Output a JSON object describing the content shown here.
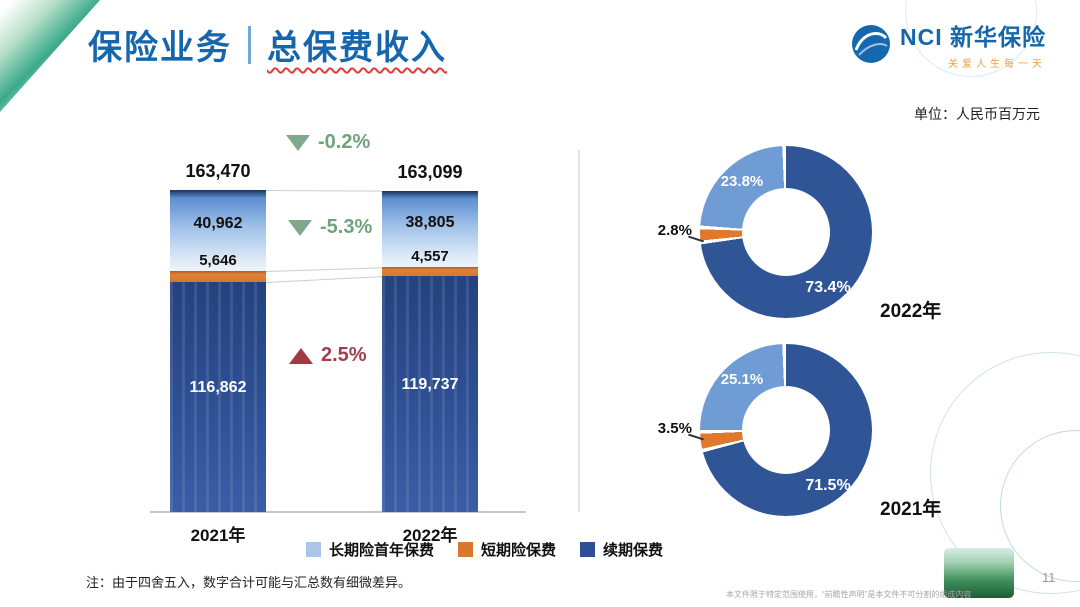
{
  "header": {
    "title_left": "保险业务",
    "title_right": "总保费收入"
  },
  "logo": {
    "abbr": "NCI",
    "company": "新华保险",
    "tagline": "关爱人生每一天",
    "brand_color": "#1467AC",
    "tagline_color": "#E8A23C"
  },
  "unit_label": "单位：人民币百万元",
  "chart_data": [
    {
      "type": "bar",
      "subtype": "stacked",
      "title": "总保费收入",
      "unit": "人民币百万元",
      "categories": [
        "2021年",
        "2022年"
      ],
      "totals": [
        163470,
        163099
      ],
      "totals_text": [
        "163,470",
        "163,099"
      ],
      "bars": [
        {
          "category": "2021年",
          "total": 163470,
          "total_text": "163,470",
          "segments": [
            {
              "name": "长期险首年保费",
              "value": 40962,
              "text": "40,962",
              "color": "#8FB0DE"
            },
            {
              "name": "短期险保费",
              "value": 5646,
              "text": "5,646",
              "color": "#D9782D"
            },
            {
              "name": "续期保费",
              "value": 116862,
              "text": "116,862",
              "color": "#2E4F96"
            }
          ]
        },
        {
          "category": "2022年",
          "total": 163099,
          "total_text": "163,099",
          "segments": [
            {
              "name": "长期险首年保费",
              "value": 38805,
              "text": "38,805",
              "color": "#8FB0DE"
            },
            {
              "name": "短期险保费",
              "value": 4557,
              "text": "4,557",
              "color": "#D9782D"
            },
            {
              "name": "续期保费",
              "value": 119737,
              "text": "119,737",
              "color": "#2E4F96"
            }
          ]
        }
      ],
      "change_indicators": [
        {
          "text": "-0.2%",
          "direction": "down",
          "color": "#6FA37B",
          "refers_to": "总保费"
        },
        {
          "text": "-5.3%",
          "direction": "down",
          "color": "#6FA37B",
          "refers_to": "长期险首年保费"
        },
        {
          "text": "2.5%",
          "direction": "up",
          "color": "#9E3F4C",
          "refers_to": "续期保费"
        }
      ],
      "legend": [
        {
          "label": "长期险首年保费",
          "color": "#A9C6E8"
        },
        {
          "label": "短期险保费",
          "color": "#D9782D"
        },
        {
          "label": "续期保费",
          "color": "#2E4F96"
        }
      ],
      "grid": false
    },
    {
      "type": "pie",
      "subtype": "donut",
      "year_label": "2022年",
      "slices": [
        {
          "name": "续期保费",
          "value": 73.4,
          "text": "73.4%",
          "color": "#2F5597"
        },
        {
          "name": "短期险保费",
          "value": 2.8,
          "text": "2.8%",
          "color": "#E0782E"
        },
        {
          "name": "长期险首年保费",
          "value": 23.8,
          "text": "23.8%",
          "color": "#6F9CD4"
        }
      ]
    },
    {
      "type": "pie",
      "subtype": "donut",
      "year_label": "2021年",
      "slices": [
        {
          "name": "续期保费",
          "value": 71.5,
          "text": "71.5%",
          "color": "#2F5597"
        },
        {
          "name": "短期险保费",
          "value": 3.5,
          "text": "3.5%",
          "color": "#E0782E"
        },
        {
          "name": "长期险首年保费",
          "value": 25.1,
          "text": "25.1%",
          "color": "#6F9CD4"
        }
      ]
    }
  ],
  "footer": {
    "note": "注：由于四舍五入，数字合计可能与汇总数有细微差异。",
    "disclaimer": "本文件限于特定范围使用，“前瞻性声明”是本文件不可分割的组成内容",
    "page_number": "11"
  }
}
